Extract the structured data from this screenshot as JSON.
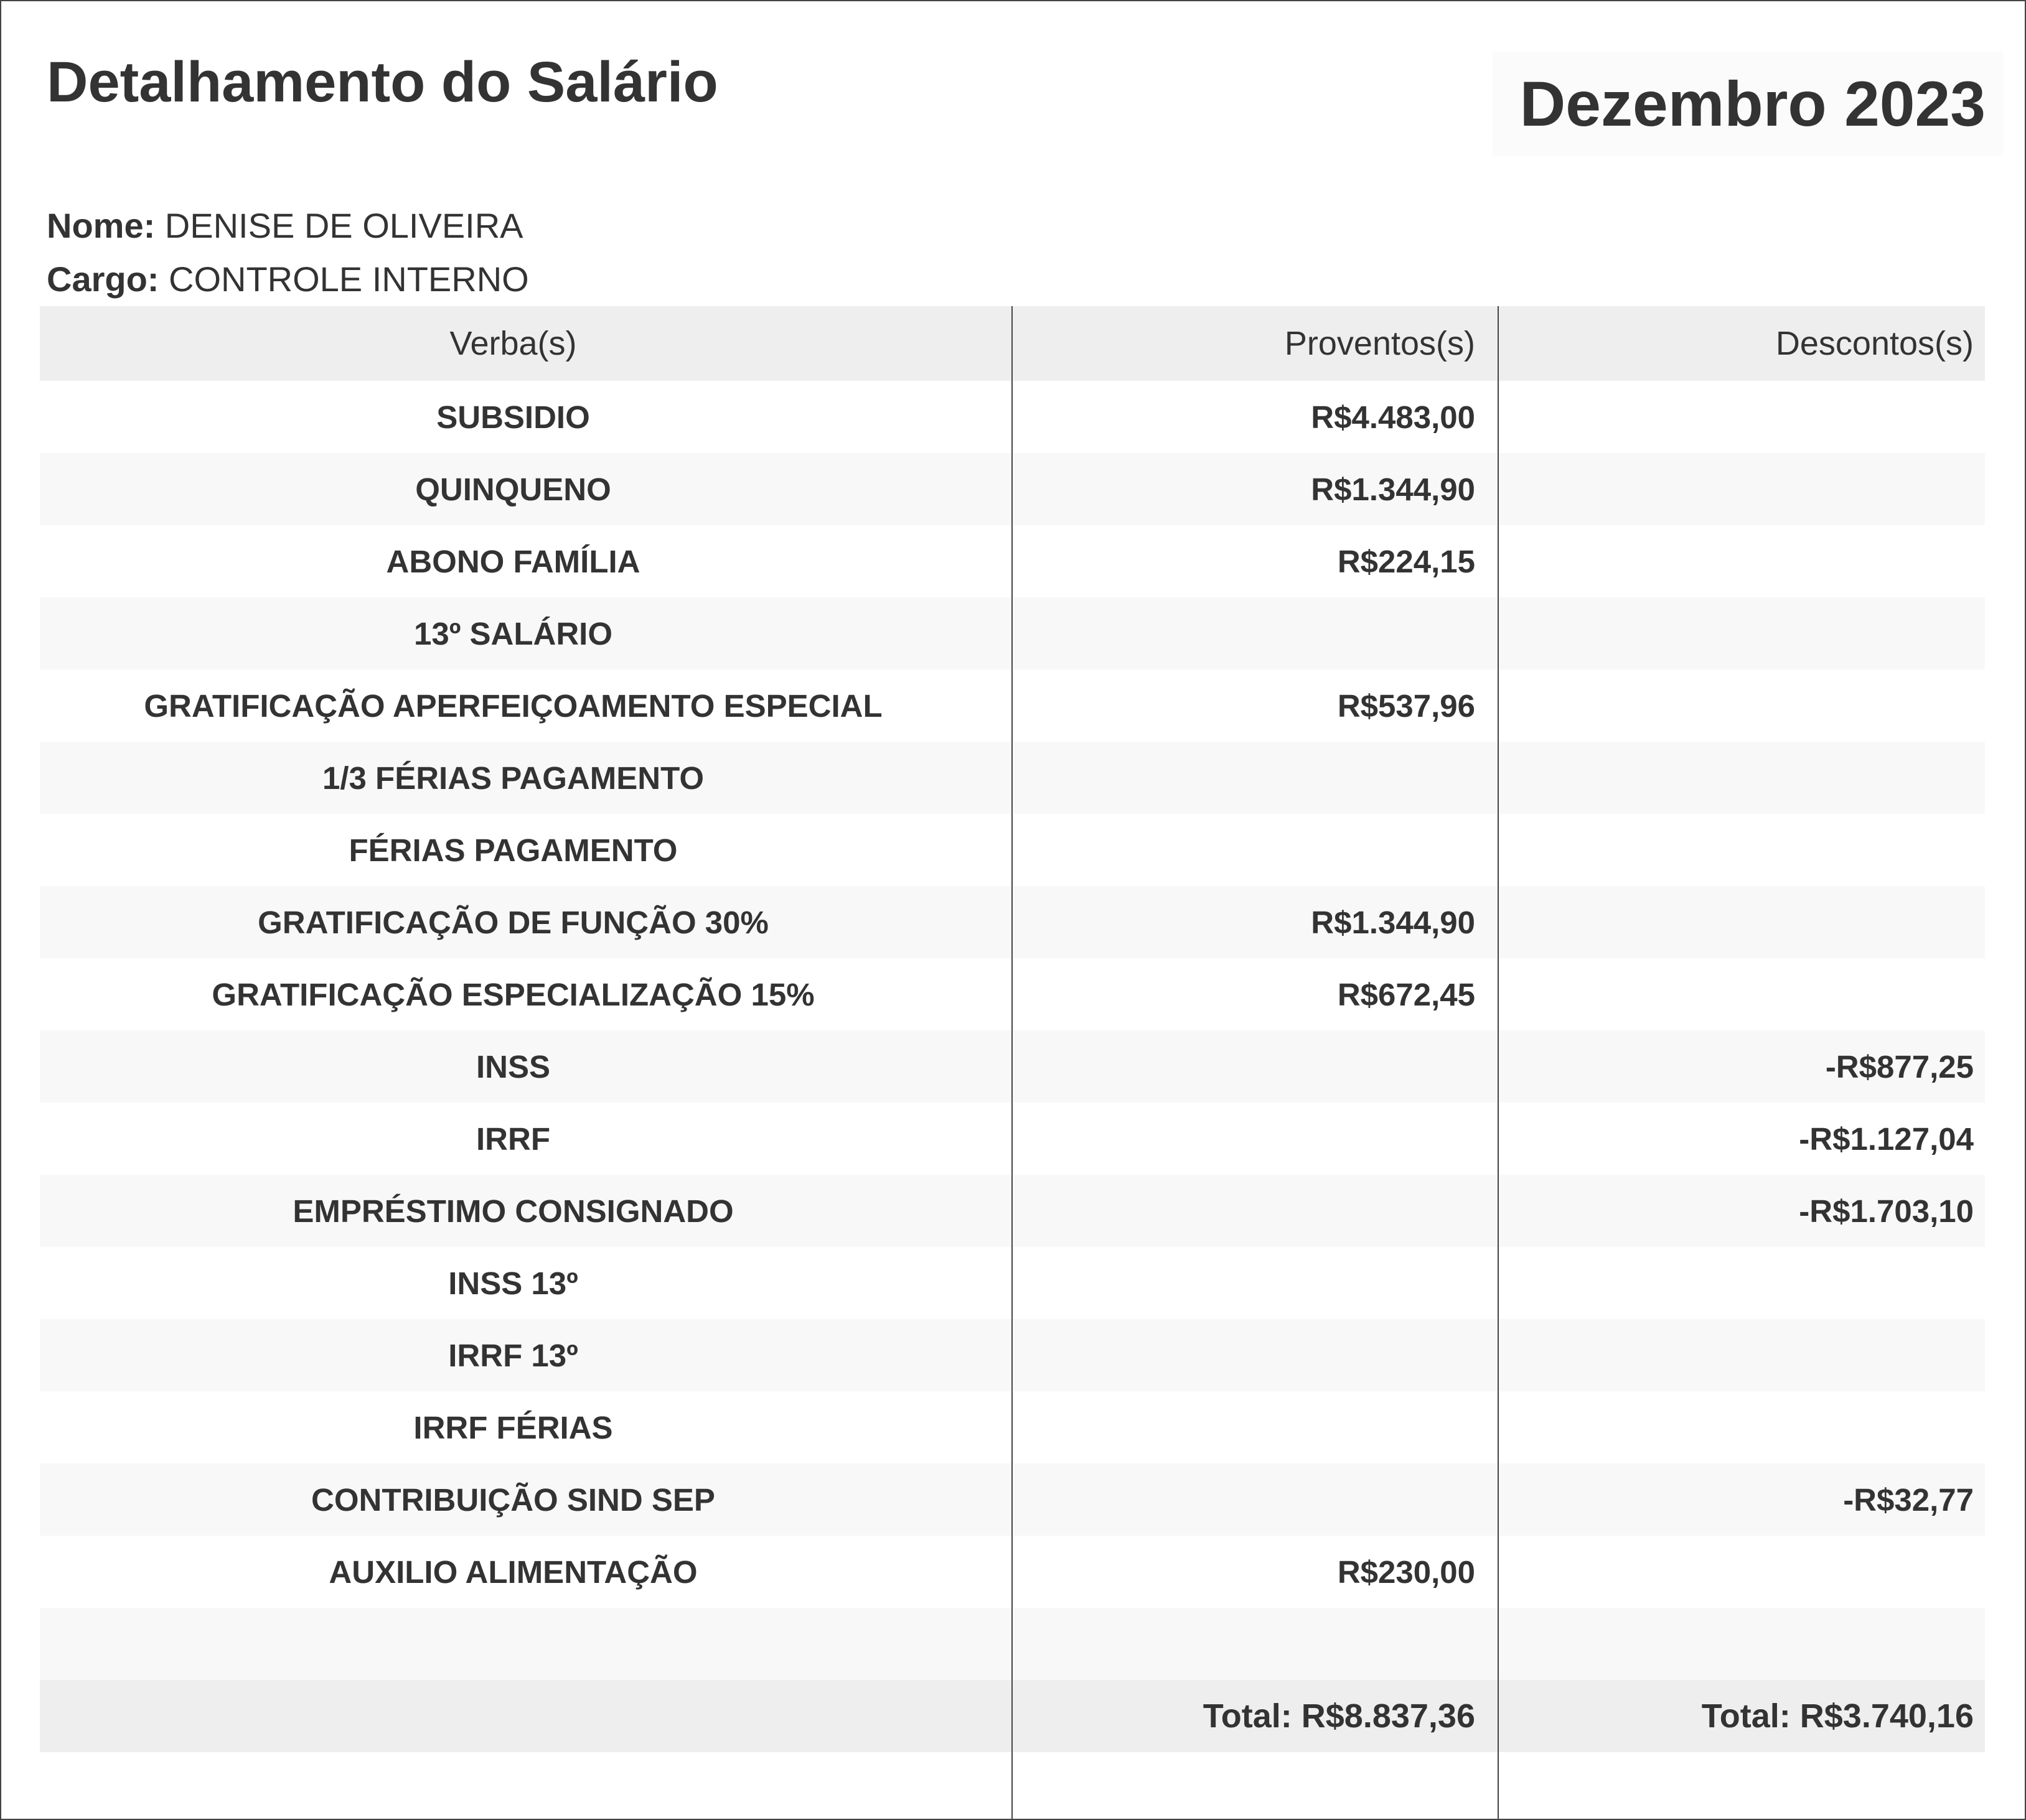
{
  "header": {
    "title": "Detalhamento do Salário",
    "period": "Dezembro 2023"
  },
  "employee": {
    "name_label": "Nome:",
    "name": "DENISE DE OLIVEIRA",
    "role_label": "Cargo:",
    "role": "CONTROLE INTERNO"
  },
  "table": {
    "columns": [
      "Verba(s)",
      "Proventos(s)",
      "Descontos(s)"
    ],
    "rows": [
      {
        "verba": "SUBSIDIO",
        "proventos": "R$4.483,00",
        "descontos": ""
      },
      {
        "verba": "QUINQUENO",
        "proventos": "R$1.344,90",
        "descontos": ""
      },
      {
        "verba": "ABONO FAMÍLIA",
        "proventos": "R$224,15",
        "descontos": ""
      },
      {
        "verba": "13º SALÁRIO",
        "proventos": "",
        "descontos": ""
      },
      {
        "verba": "GRATIFICAÇÃO APERFEIÇOAMENTO ESPECIAL",
        "proventos": "R$537,96",
        "descontos": ""
      },
      {
        "verba": "1/3 FÉRIAS PAGAMENTO",
        "proventos": "",
        "descontos": ""
      },
      {
        "verba": "FÉRIAS PAGAMENTO",
        "proventos": "",
        "descontos": ""
      },
      {
        "verba": "GRATIFICAÇÃO DE FUNÇÃO 30%",
        "proventos": "R$1.344,90",
        "descontos": ""
      },
      {
        "verba": "GRATIFICAÇÃO ESPECIALIZAÇÃO 15%",
        "proventos": "R$672,45",
        "descontos": ""
      },
      {
        "verba": "INSS",
        "proventos": "",
        "descontos": "-R$877,25"
      },
      {
        "verba": "IRRF",
        "proventos": "",
        "descontos": "-R$1.127,04"
      },
      {
        "verba": "EMPRÉSTIMO CONSIGNADO",
        "proventos": "",
        "descontos": "-R$1.703,10"
      },
      {
        "verba": "INSS 13º",
        "proventos": "",
        "descontos": ""
      },
      {
        "verba": "IRRF 13º",
        "proventos": "",
        "descontos": ""
      },
      {
        "verba": "IRRF FÉRIAS",
        "proventos": "",
        "descontos": ""
      },
      {
        "verba": "CONTRIBUIÇÃO SIND SEP",
        "proventos": "",
        "descontos": "-R$32,77"
      },
      {
        "verba": "AUXILIO ALIMENTAÇÃO",
        "proventos": "R$230,00",
        "descontos": ""
      },
      {
        "verba": "",
        "proventos": "",
        "descontos": ""
      }
    ],
    "totals": {
      "proventos": "Total: R$8.837,36",
      "descontos": "Total: R$3.740,16"
    }
  }
}
